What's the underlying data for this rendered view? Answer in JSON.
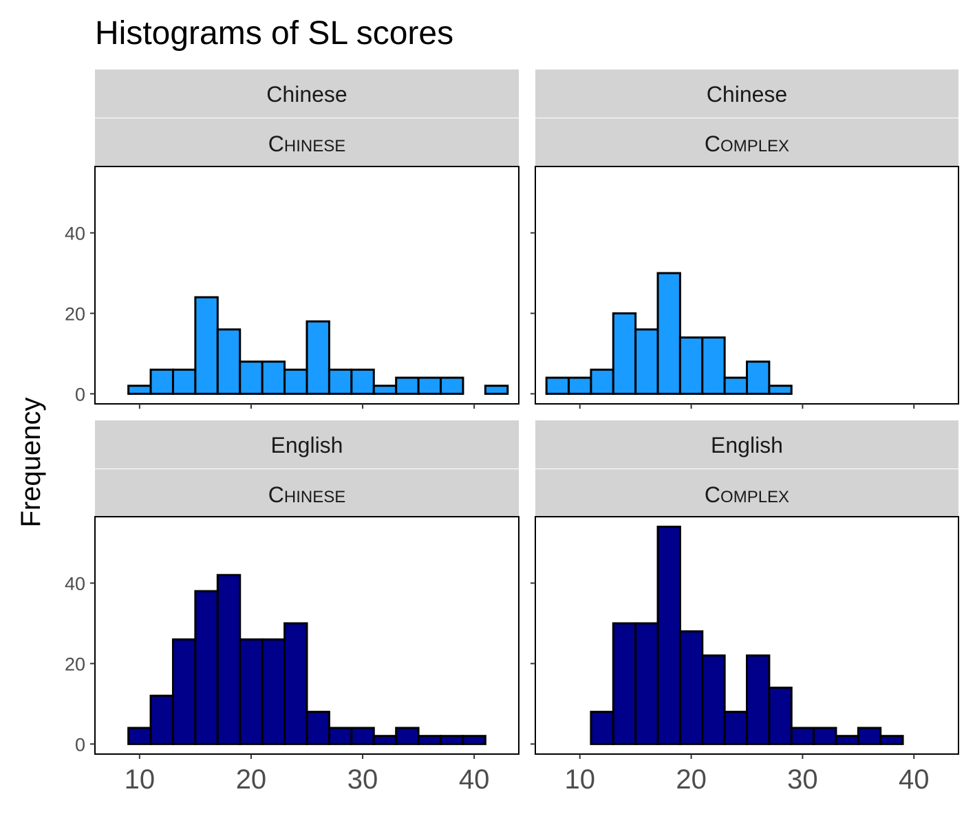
{
  "chart_data": {
    "type": "bar",
    "title": "Histograms of SL scores",
    "xlabel": "",
    "ylabel": "Frequency",
    "x_ticks": [
      10,
      20,
      30,
      40
    ],
    "y_ticks": [
      0,
      20,
      40
    ],
    "xlim": [
      6,
      44
    ],
    "ylim": [
      -2.5,
      56.5
    ],
    "bin_width": 2,
    "bin_centers": [
      8,
      10,
      12,
      14,
      16,
      18,
      20,
      22,
      24,
      26,
      28,
      30,
      32,
      34,
      36,
      38,
      40,
      42
    ],
    "grid": false,
    "legend": "none",
    "colors": {
      "Chinese": "#1a9bff",
      "English": "#00008b",
      "bar_outline": "#000000",
      "strip_fill": "#d3d3d3"
    },
    "panels": [
      {
        "strip_top": "Chinese",
        "strip_bottom": "Chinese",
        "fill_key": "Chinese",
        "values": [
          0,
          2,
          6,
          6,
          24,
          16,
          8,
          8,
          6,
          18,
          6,
          6,
          2,
          4,
          4,
          4,
          0,
          2
        ]
      },
      {
        "strip_top": "Chinese",
        "strip_bottom": "Complex",
        "fill_key": "Chinese",
        "values": [
          4,
          4,
          6,
          20,
          16,
          30,
          14,
          14,
          4,
          8,
          2,
          0,
          0,
          0,
          0,
          0,
          0,
          0
        ]
      },
      {
        "strip_top": "English",
        "strip_bottom": "Chinese",
        "fill_key": "English",
        "values": [
          0,
          4,
          12,
          26,
          38,
          42,
          26,
          26,
          30,
          8,
          4,
          4,
          2,
          4,
          2,
          2,
          2,
          0
        ]
      },
      {
        "strip_top": "English",
        "strip_bottom": "Complex",
        "fill_key": "English",
        "values": [
          0,
          0,
          8,
          30,
          30,
          54,
          28,
          22,
          8,
          22,
          14,
          4,
          4,
          2,
          4,
          2,
          0,
          0
        ]
      }
    ]
  }
}
